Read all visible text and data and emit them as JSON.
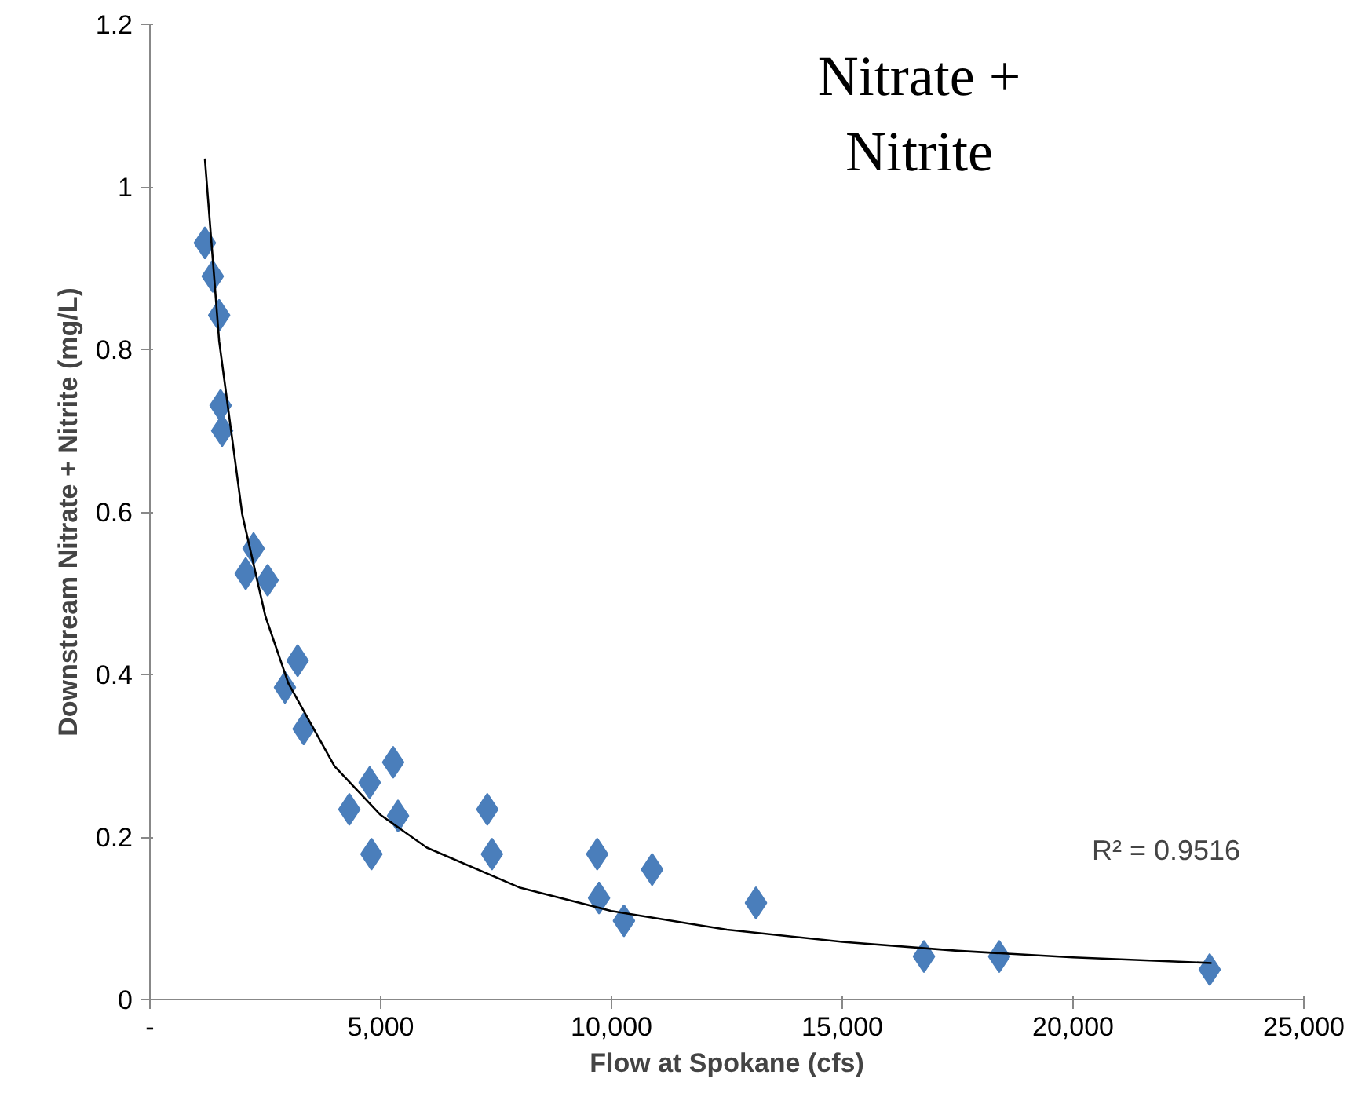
{
  "chart_data": {
    "type": "scatter",
    "title": "Nitrate +\nNitrite",
    "xlabel": "Flow at Spokane (cfs)",
    "ylabel": "Downstream Nitrate + Nitrite (mg/L)",
    "xlim": [
      0,
      25000
    ],
    "ylim": [
      0,
      1.2
    ],
    "xticks": [
      {
        "value": 0,
        "label": "-"
      },
      {
        "value": 5000,
        "label": "5,000"
      },
      {
        "value": 10000,
        "label": "10,000"
      },
      {
        "value": 15000,
        "label": "15,000"
      },
      {
        "value": 20000,
        "label": "20,000"
      },
      {
        "value": 25000,
        "label": "25,000"
      }
    ],
    "yticks": [
      0,
      0.2,
      0.4,
      0.6,
      0.8,
      1,
      1.2
    ],
    "grid": false,
    "marker": "diamond",
    "annotations": [
      "R² = 0.9516"
    ],
    "series": [
      {
        "color": "#4a7ebb",
        "x": [
          1190,
          1360,
          1500,
          1530,
          1565,
          2245,
          2075,
          2550,
          3200,
          2925,
          3330,
          4320,
          4760,
          5270,
          4800,
          5375,
          7310,
          7410,
          9690,
          9730,
          10270,
          10880,
          13130,
          16770,
          18400,
          22960
        ],
        "values": [
          0.931,
          0.89,
          0.842,
          0.731,
          0.7,
          0.555,
          0.524,
          0.516,
          0.417,
          0.384,
          0.333,
          0.234,
          0.267,
          0.292,
          0.179,
          0.226,
          0.234,
          0.179,
          0.179,
          0.125,
          0.097,
          0.16,
          0.119,
          0.053,
          0.053,
          0.037
        ]
      },
      {
        "type": "line",
        "color": "#000000",
        "marker": "none",
        "x": [
          1190,
          1500,
          2000,
          2500,
          3000,
          4000,
          5000,
          6000,
          8000,
          10000,
          12500,
          15000,
          17500,
          20000,
          23000
        ],
        "values": [
          1.035,
          0.81,
          0.597,
          0.472,
          0.389,
          0.287,
          0.227,
          0.187,
          0.138,
          0.109,
          0.086,
          0.071,
          0.06,
          0.052,
          0.045
        ]
      }
    ]
  }
}
